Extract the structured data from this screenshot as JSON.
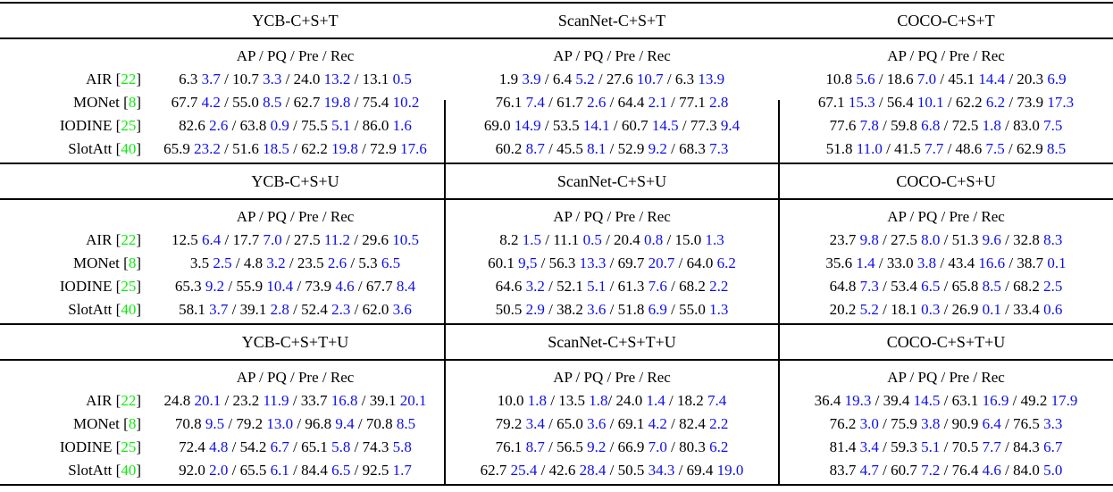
{
  "table": {
    "metrics_header": "AP / PQ / Pre / Rec",
    "colors": {
      "text": "#000000",
      "std": "#0f0fe6",
      "reference": "#0ced0c"
    },
    "methods": [
      {
        "name": "AIR",
        "ref": "22"
      },
      {
        "name": "MONet",
        "ref": "8"
      },
      {
        "name": "IODINE",
        "ref": "25"
      },
      {
        "name": "SlotAtt",
        "ref": "40"
      }
    ],
    "bands": [
      {
        "groups": [
          {
            "header": "YCB-C+S+T",
            "rows": [
              "6.3 3.7 / 10.7 3.3 / 24.0 13.2 / 13.1 0.5",
              "67.7 4.2 / 55.0 8.5 / 62.7 19.8 / 75.4 10.2",
              "82.6 2.6 / 63.8 0.9 / 75.5 5.1 / 86.0 1.6",
              "65.9 23.2 / 51.6 18.5 / 62.2 19.8 / 72.9 17.6"
            ]
          },
          {
            "header": "ScanNet-C+S+T",
            "rows": [
              "1.9 3.9 / 6.4 5.2 / 27.6 10.7 / 6.3 13.9",
              "76.1 7.4 / 61.7 2.6 / 64.4 2.1 / 77.1 2.8",
              "69.0 14.9 / 53.5 14.1 / 60.7 14.5 / 77.3 9.4",
              "60.2 8.7 / 45.5 8.1 / 52.9 9.2 / 68.3 7.3"
            ]
          },
          {
            "header": "COCO-C+S+T",
            "rows": [
              "10.8 5.6 / 18.6 7.0 / 45.1 14.4 / 20.3 6.9",
              "67.1 15.3 / 56.4 10.1 / 62.2 6.2 / 73.9 17.3",
              "77.6 7.8 / 59.8 6.8 / 72.5 1.8 / 83.0 7.5",
              "51.8 11.0 / 41.5 7.7 / 48.6 7.5 / 62.9 8.5"
            ]
          }
        ]
      },
      {
        "groups": [
          {
            "header": "YCB-C+S+U",
            "rows": [
              "12.5 6.4 / 17.7 7.0 / 27.5 11.2 / 29.6 10.5",
              "3.5 2.5 / 4.8 3.2 / 23.5 2.6 / 5.3 6.5",
              "65.3 9.2 / 55.9 10.4 / 73.9 4.6 / 67.7 8.4",
              "58.1 3.7 / 39.1 2.8 / 52.4 2.3 / 62.0 3.6"
            ]
          },
          {
            "header": "ScanNet-C+S+U",
            "rows": [
              "8.2 1.5 / 11.1 0.5 / 20.4 0.8 / 15.0 1.3",
              "60.1 9,5 / 56.3 13.3 / 69.7 20.7 / 64.0 6.2",
              "64.6 3.2 / 52.1 5.1 / 61.3 7.6 / 68.2 2.2",
              "50.5 2.9 / 38.2 3.6 / 51.8 6.9 / 55.0 1.3"
            ]
          },
          {
            "header": "COCO-C+S+U",
            "rows": [
              "23.7 9.8 / 27.5 8.0 / 51.3 9.6 / 32.8 8.3",
              "35.6 1.4 / 33.0 3.8 / 43.4 16.6 / 38.7 0.1",
              "64.8 7.3 / 53.4 6.5 / 65.8 8.5 / 68.2 2.5",
              "20.2 5.2 / 18.1 0.3 / 26.9 0.1 / 33.4 0.6"
            ]
          }
        ]
      },
      {
        "groups": [
          {
            "header": "YCB-C+S+T+U",
            "rows": [
              "24.8 20.1 / 23.2 11.9 / 33.7 16.8 / 39.1 20.1",
              "70.8 9.5 / 79.2 13.0 / 96.8 9.4 / 70.8 8.5",
              "72.4 4.8 / 54.2 6.7 / 65.1 5.8 / 74.3 5.8",
              "92.0 2.0 / 65.5 6.1 / 84.4 6.5 / 92.5 1.7"
            ]
          },
          {
            "header": "ScanNet-C+S+T+U",
            "rows": [
              "10.0 1.8 / 13.5 1.8/ 24.0 1.4 / 18.2 7.4",
              "79.2 3.4 / 65.0 3.6 / 69.1 4.2 / 82.4 2.2",
              "76.1 8.7 / 56.5 9.2 / 66.9 7.0 / 80.3 6.2",
              "62.7 25.4 / 42.6 28.4 / 50.5 34.3 / 69.4 19.0"
            ]
          },
          {
            "header": "COCO-C+S+T+U",
            "rows": [
              "36.4 19.3 / 39.4 14.5 / 63.1 16.9 / 49.2 17.9",
              "76.2 3.0 / 75.9 3.8 / 90.9 6.4 / 76.5 3.3",
              "81.4 3.4 / 59.3 5.1 / 70.5 7.7 / 84.3 6.7",
              "83.7 4.7 / 60.7 7.2 / 76.4 4.6 / 84.0 5.0"
            ]
          }
        ]
      }
    ],
    "vertical_rule_x": [
      497,
      871
    ]
  }
}
